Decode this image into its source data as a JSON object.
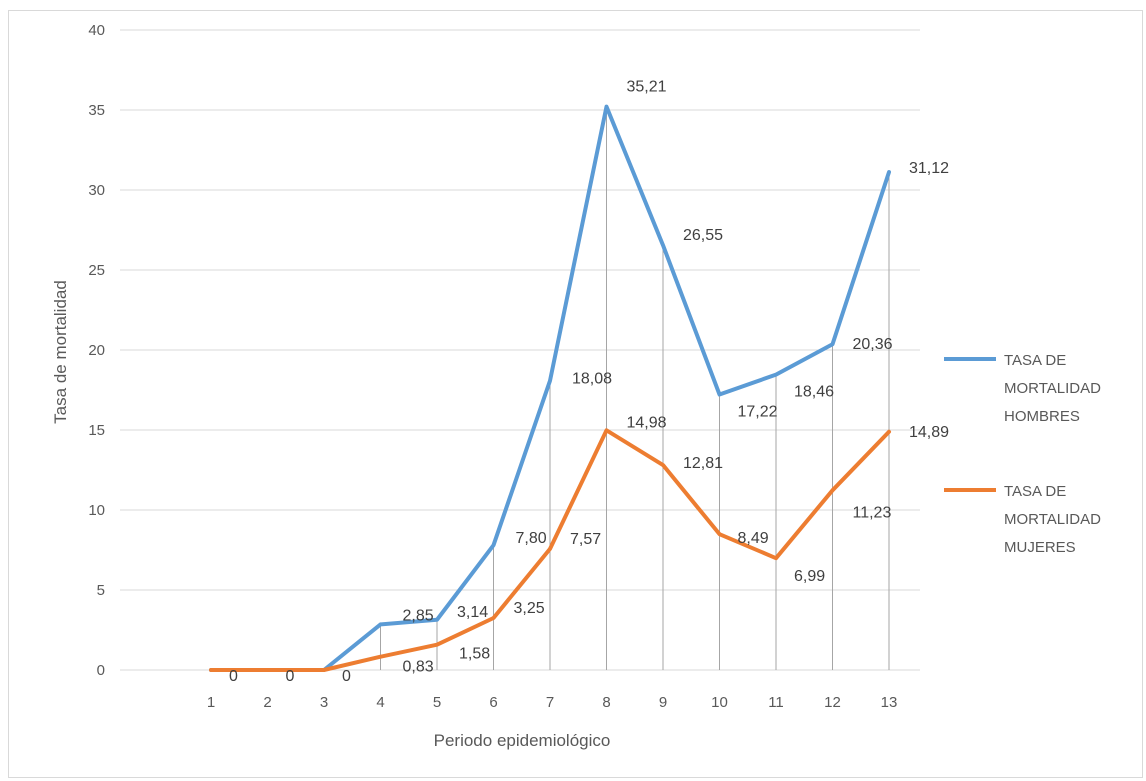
{
  "chart_data": {
    "type": "line",
    "title": "",
    "xlabel": "Periodo epidemiológico",
    "ylabel": "Tasa de mortalidad",
    "categories": [
      "1",
      "2",
      "3",
      "4",
      "5",
      "6",
      "7",
      "8",
      "9",
      "10",
      "11",
      "12",
      "13"
    ],
    "ylim": [
      0,
      40
    ],
    "yticks": [
      "0",
      "5",
      "10",
      "15",
      "20",
      "25",
      "30",
      "35",
      "40"
    ],
    "grid": true,
    "legend": "right",
    "series": [
      {
        "name": "TASA DE MORTALIDAD HOMBRES",
        "legend_lines": [
          "TASA DE",
          "MORTALIDAD",
          "HOMBRES"
        ],
        "color": "#5b9bd5",
        "values": [
          0,
          0,
          0,
          2.85,
          3.14,
          7.8,
          18.08,
          35.21,
          26.55,
          17.22,
          18.46,
          20.36,
          31.12
        ],
        "labels": [
          "",
          "",
          "",
          "2,85",
          "3,14",
          "7,80",
          "18,08",
          "35,21",
          "26,55",
          "17,22",
          "18,46",
          "20,36",
          "31,12"
        ]
      },
      {
        "name": "TASA DE MORTALIDAD MUJERES",
        "legend_lines": [
          "TASA DE",
          "MORTALIDAD",
          "MUJERES"
        ],
        "color": "#ed7d31",
        "values": [
          0,
          0,
          0,
          0.83,
          1.58,
          3.25,
          7.57,
          14.98,
          12.81,
          8.49,
          6.99,
          11.23,
          14.89
        ],
        "labels": [
          "0",
          "0",
          "0",
          "0,83",
          "1,58",
          "3,25",
          "7,57",
          "14,98",
          "12,81",
          "8,49",
          "6,99",
          "11,23",
          "14,89"
        ]
      }
    ]
  }
}
